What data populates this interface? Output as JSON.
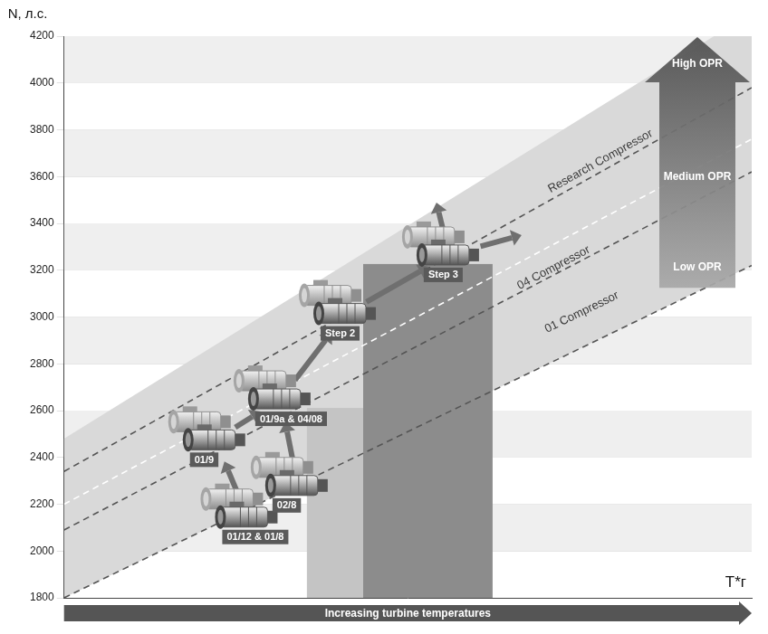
{
  "chart_data": {
    "type": "line",
    "ylabel": "N, л.с.",
    "xlabel": "T*г",
    "footer": "Increasing turbine temperatures",
    "x": [
      0,
      100
    ],
    "xlim": [
      0,
      100
    ],
    "ylim": [
      1800,
      4200
    ],
    "yticks": [
      1800,
      2000,
      2200,
      2400,
      2600,
      2800,
      3000,
      3200,
      3400,
      3600,
      3800,
      4000,
      4200
    ],
    "grid": true,
    "tick_labels": "y",
    "envelope": {
      "upper": [
        2480,
        4300
      ],
      "lower": [
        1800,
        3220
      ]
    },
    "series": [
      {
        "name": "Research Compressor",
        "color": "#555555",
        "line_style": "dashed",
        "values": [
          2340,
          3980
        ]
      },
      {
        "name": "04 Compressor",
        "color": "#ffffff",
        "line_style": "dashed",
        "values": [
          2200,
          3760
        ]
      },
      {
        "color": "#555555",
        "line_style": "dashed",
        "values": [
          2090,
          3620
        ]
      },
      {
        "name": "01 Compressor",
        "color": "#555555",
        "line_style": "dashed",
        "values": [
          1800,
          3220
        ]
      }
    ],
    "engines": [
      {
        "label": "01/12 & 01/8",
        "x": 26.7,
        "y": 2145
      },
      {
        "label": "02/8",
        "x": 34,
        "y": 2280
      },
      {
        "label": "01/9",
        "x": 22,
        "y": 2475
      },
      {
        "label": "01/9a & 04/08",
        "x": 31.5,
        "y": 2650
      },
      {
        "label": "Step 2",
        "x": 41,
        "y": 3015
      },
      {
        "label": "Step 3",
        "x": 56,
        "y": 3265
      }
    ],
    "annotations": [
      {
        "text": "Research Compressor",
        "x": 78,
        "y": 3665
      },
      {
        "text": "04 Compressor",
        "x": 71.2,
        "y": 3210
      },
      {
        "text": "01 Compressor",
        "x": 75.3,
        "y": 3020
      }
    ],
    "opr_labels": [
      {
        "text": "Low OPR",
        "x": 94,
        "y": 3210
      },
      {
        "text": "Medium OPR",
        "x": 94,
        "y": 3600
      },
      {
        "text": "High OPR",
        "x": 94,
        "y": 4080
      }
    ]
  }
}
